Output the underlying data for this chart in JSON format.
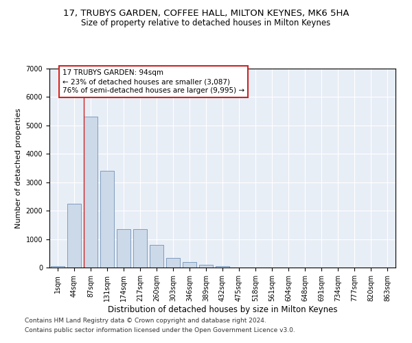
{
  "title1": "17, TRUBYS GARDEN, COFFEE HALL, MILTON KEYNES, MK6 5HA",
  "title2": "Size of property relative to detached houses in Milton Keynes",
  "xlabel": "Distribution of detached houses by size in Milton Keynes",
  "ylabel": "Number of detached properties",
  "categories": [
    "1sqm",
    "44sqm",
    "87sqm",
    "131sqm",
    "174sqm",
    "217sqm",
    "260sqm",
    "303sqm",
    "346sqm",
    "389sqm",
    "432sqm",
    "475sqm",
    "518sqm",
    "561sqm",
    "604sqm",
    "648sqm",
    "691sqm",
    "734sqm",
    "777sqm",
    "820sqm",
    "863sqm"
  ],
  "values": [
    50,
    2250,
    5300,
    3400,
    1350,
    1350,
    800,
    350,
    200,
    100,
    50,
    10,
    2,
    0,
    0,
    0,
    0,
    0,
    0,
    0,
    0
  ],
  "bar_color": "#ccd9e8",
  "bar_edge_color": "#7090b8",
  "vline_color": "#cc2222",
  "annotation_line1": "17 TRUBYS GARDEN: 94sqm",
  "annotation_line2": "← 23% of detached houses are smaller (3,087)",
  "annotation_line3": "76% of semi-detached houses are larger (9,995) →",
  "annotation_box_color": "#cc2222",
  "ylim": [
    0,
    7000
  ],
  "yticks": [
    0,
    1000,
    2000,
    3000,
    4000,
    5000,
    6000,
    7000
  ],
  "footer1": "Contains HM Land Registry data © Crown copyright and database right 2024.",
  "footer2": "Contains public sector information licensed under the Open Government Licence v3.0.",
  "bg_color": "#e8eef6",
  "title1_fontsize": 9.5,
  "title2_fontsize": 8.5,
  "ylabel_fontsize": 8,
  "xlabel_fontsize": 8.5,
  "tick_fontsize": 7,
  "annotation_fontsize": 7.5,
  "footer_fontsize": 6.5
}
